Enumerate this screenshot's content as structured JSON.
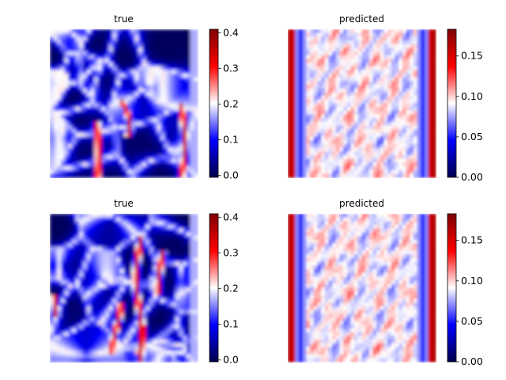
{
  "colormap": {
    "name": "seismic",
    "low": "#00004c",
    "mid": "#ffffff",
    "high": "#800000"
  },
  "chart_data": [
    {
      "type": "heatmap",
      "title": "true",
      "vmin": -0.005,
      "vmax": 0.41,
      "colorbar_ticks": [
        0.0,
        0.1,
        0.2,
        0.3,
        0.4
      ],
      "colorbar_tick_labels": [
        "0.0",
        "0.1",
        "0.2",
        "0.3",
        "0.4"
      ],
      "axes_visible": false,
      "field": "cellular: dark-blue cells (~0) separated by white/blue ridges, a few red strands (~0.35) incl. right edge"
    },
    {
      "type": "heatmap",
      "title": "predicted",
      "vmin": 0.0,
      "vmax": 0.183,
      "colorbar_ticks": [
        0.0,
        0.05,
        0.1,
        0.15
      ],
      "colorbar_tick_labels": [
        "0.00",
        "0.05",
        "0.10",
        "0.15"
      ],
      "axes_visible": false,
      "field": "smooth: red vertical bands at left and right edges, blue bands inside, pale mottled interior near 0.1"
    },
    {
      "type": "heatmap",
      "title": "true",
      "vmin": -0.005,
      "vmax": 0.41,
      "colorbar_ticks": [
        0.0,
        0.1,
        0.2,
        0.3,
        0.4
      ],
      "colorbar_tick_labels": [
        "0.0",
        "0.1",
        "0.2",
        "0.3",
        "0.4"
      ],
      "axes_visible": false,
      "field": "cellular: dark-blue cells with several red vertical strands on the right half"
    },
    {
      "type": "heatmap",
      "title": "predicted",
      "vmin": 0.0,
      "vmax": 0.183,
      "colorbar_ticks": [
        0.0,
        0.05,
        0.1,
        0.15
      ],
      "colorbar_tick_labels": [
        "0.00",
        "0.05",
        "0.10",
        "0.15"
      ],
      "axes_visible": false,
      "field": "smooth: red vertical bands at left and right edges, blue bands inside, pale mottled interior near 0.1"
    }
  ]
}
